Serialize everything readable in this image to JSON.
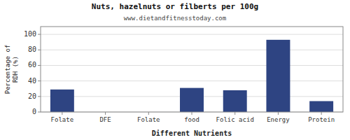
{
  "chart_data": {
    "type": "bar",
    "title": "Nuts, hazelnuts or filberts per 100g",
    "subtitle": "www.dietandfitnesstoday.com",
    "x_label": "Different Nutrients",
    "y_label": "Percentage of\nRDH (%)",
    "categories": [
      "Folate",
      "DFE",
      "Folate",
      "food",
      "Folic acid",
      "Energy",
      "Protein"
    ],
    "values": [
      29,
      0,
      0,
      31,
      28,
      93,
      14
    ],
    "color": "#2e4482",
    "ylim": [
      0,
      110
    ],
    "yticks": [
      0,
      20,
      40,
      60,
      80,
      100
    ],
    "grid": true
  }
}
